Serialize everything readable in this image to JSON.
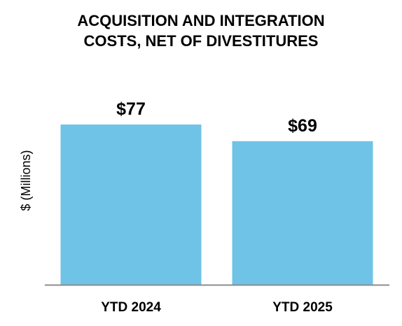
{
  "colors": {
    "bar": "#6EC3E7",
    "baseline": "#8C8C8C",
    "text": "#000000",
    "background": "#FFFFFF"
  },
  "chart_data": {
    "type": "bar",
    "title_lines": [
      "ACQUISITION AND INTEGRATION",
      "COSTS, NET OF DIVESTITURES"
    ],
    "title": "ACQUISITION AND INTEGRATION COSTS, NET OF DIVESTITURES",
    "xlabel": "",
    "ylabel": "$ (Millions)",
    "categories": [
      "YTD 2024",
      "YTD 2025"
    ],
    "values": [
      77,
      69
    ],
    "value_labels": [
      "$77",
      "$69"
    ],
    "ylim": [
      0,
      77
    ],
    "grid": false,
    "legend": "none"
  }
}
